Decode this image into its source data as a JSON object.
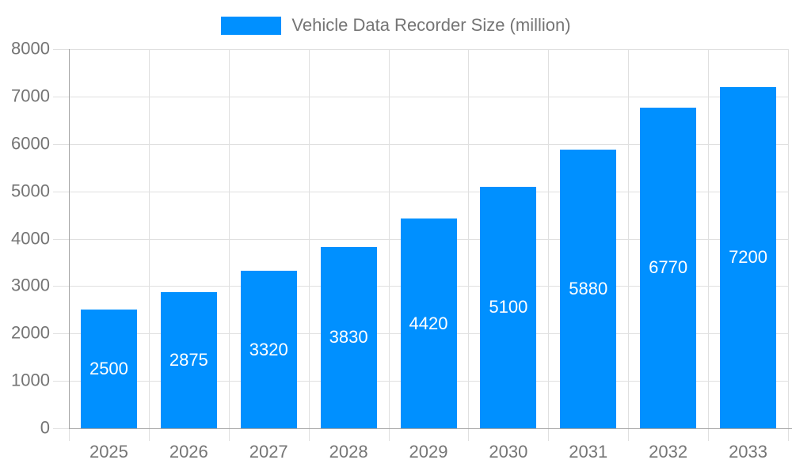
{
  "chart_data": {
    "type": "bar",
    "legend": "Vehicle Data Recorder Size (million)",
    "categories": [
      "2025",
      "2026",
      "2027",
      "2028",
      "2029",
      "2030",
      "2031",
      "2032",
      "2033"
    ],
    "values": [
      2500,
      2875,
      3320,
      3830,
      4420,
      5100,
      5880,
      6770,
      7200
    ],
    "yticks": [
      0,
      1000,
      2000,
      3000,
      4000,
      5000,
      6000,
      7000,
      8000
    ],
    "ylim": [
      0,
      8000
    ],
    "xlabel": "",
    "ylabel": "",
    "grid": true,
    "legend_position": "top-center",
    "colors": {
      "bar": "#0090FF",
      "bar_label": "#FFFFFF",
      "axis_line": "#A6A6A6",
      "grid_line": "#E0E0E0",
      "tick_line": "#E0E0E0",
      "text": "#757575",
      "background": "#FFFFFF"
    }
  }
}
